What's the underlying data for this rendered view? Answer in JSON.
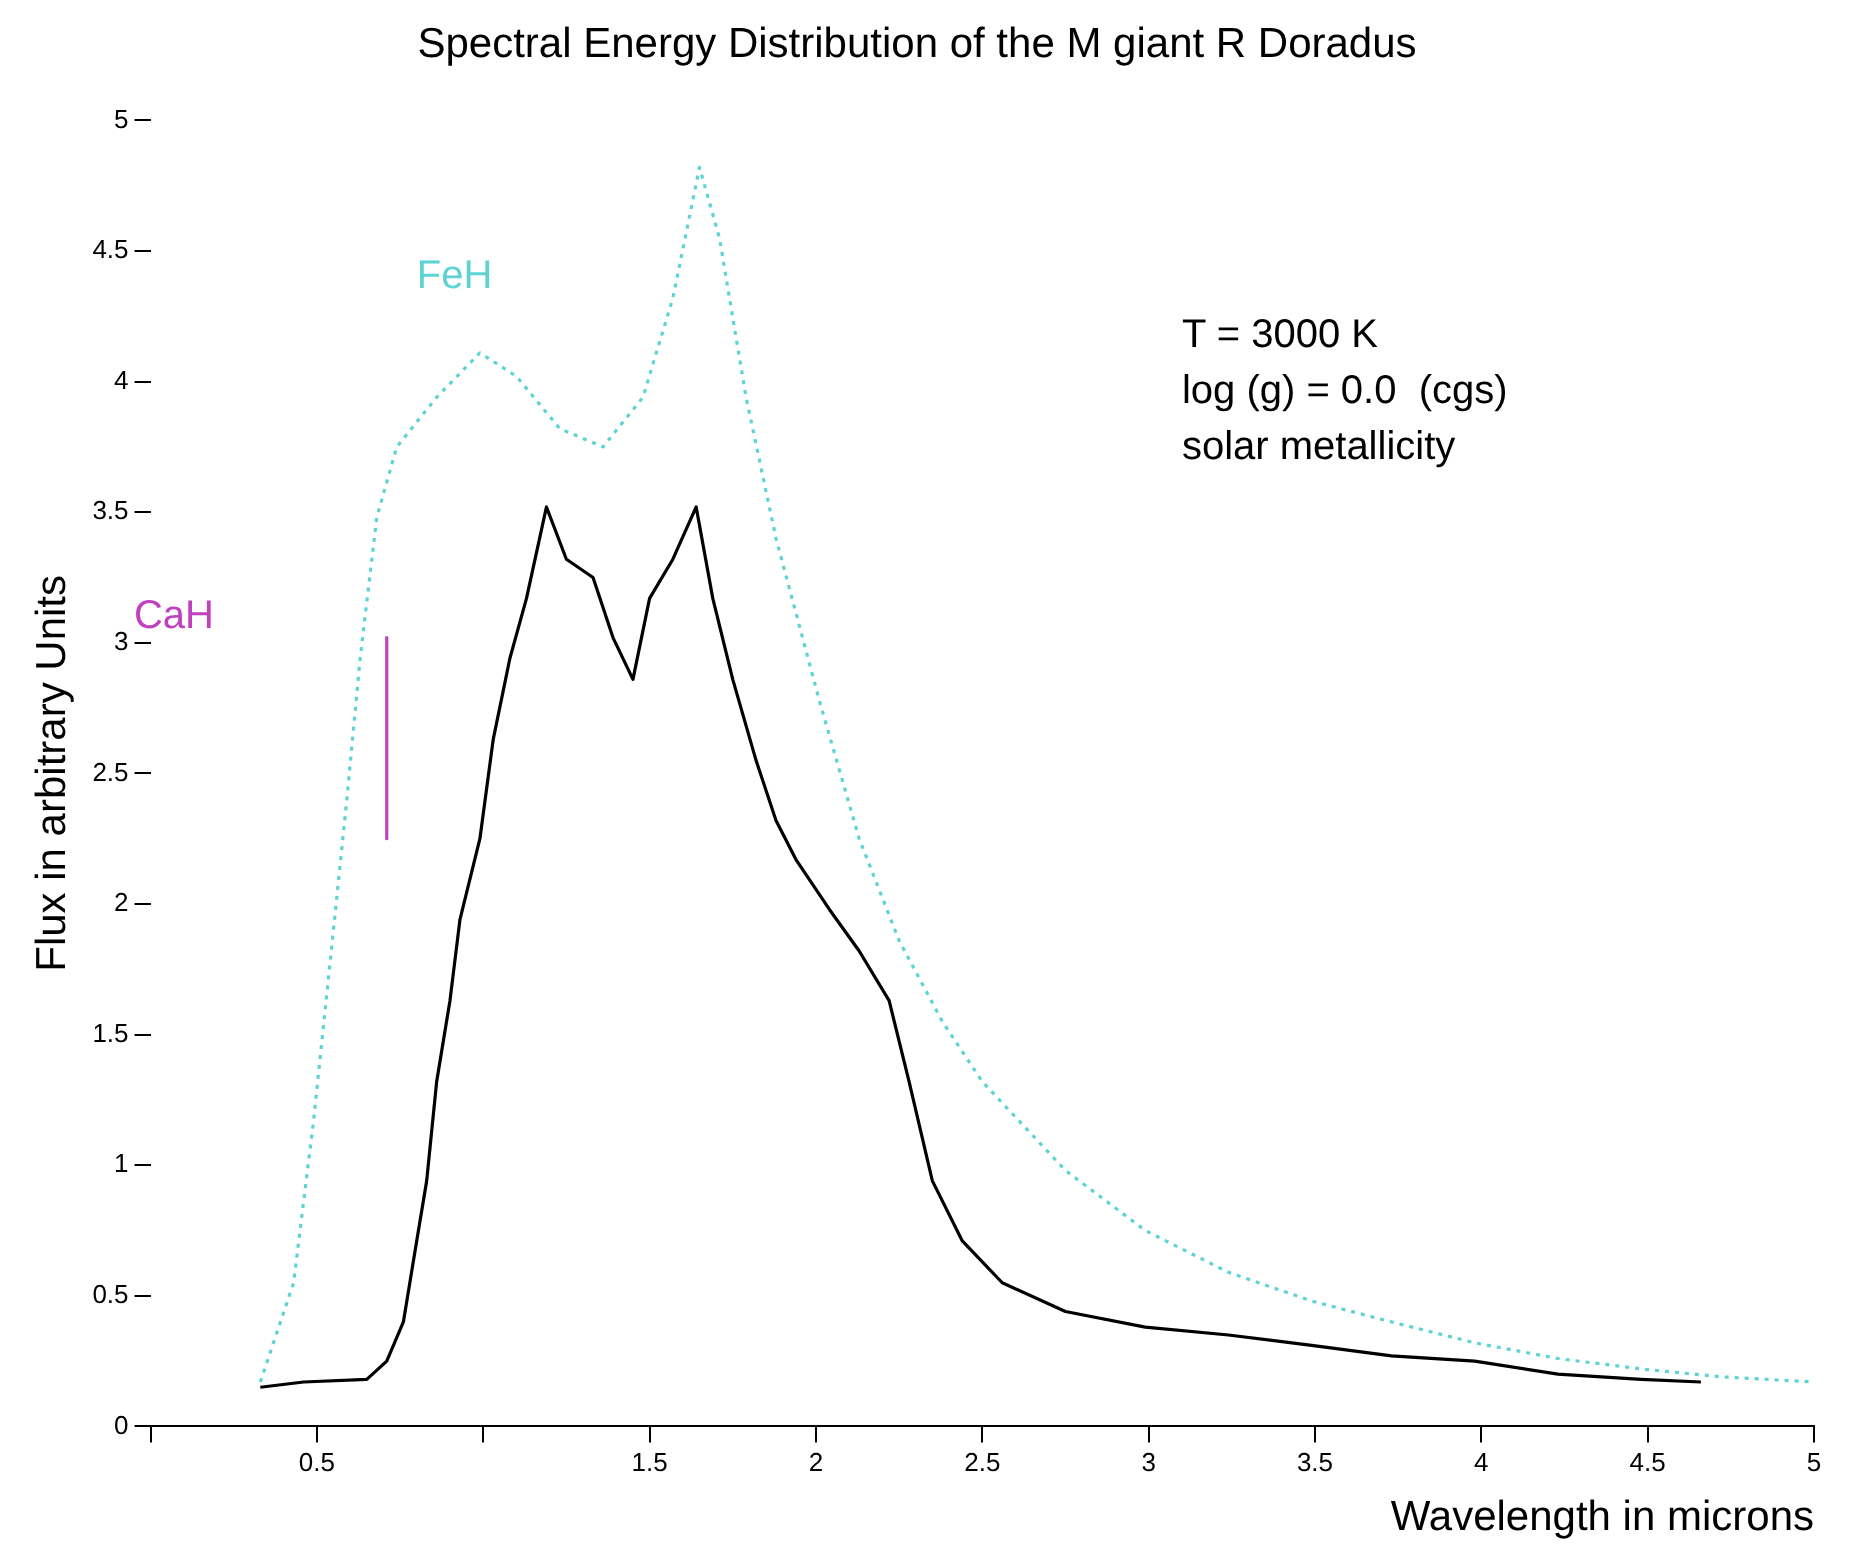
{
  "chart_data": {
    "type": "line",
    "title": "Spectral Energy Distribution of the M giant R Doradus",
    "xlabel": "Wavelength in microns",
    "ylabel": "Flux in arbitrary Units",
    "xlim": [
      0,
      5
    ],
    "xticks": [
      {
        "value": 0,
        "label": null
      },
      0.5,
      {
        "value": 1,
        "label": null
      },
      1.5,
      2,
      2.5,
      3,
      3.5,
      4,
      4.5,
      5
    ],
    "ylim": [
      0,
      5
    ],
    "yticks": [
      0,
      0.5,
      1,
      1.5,
      2,
      2.5,
      3,
      3.5,
      4,
      4.5,
      5
    ],
    "grid": false,
    "legend": false,
    "marker": "none",
    "series": [
      {
        "color": "#000000",
        "x": [
          0.33,
          0.46,
          0.65,
          0.71,
          0.76,
          0.8,
          0.83,
          0.86,
          0.9,
          0.93,
          0.99,
          1.03,
          1.08,
          1.13,
          1.19,
          1.25,
          1.33,
          1.39,
          1.45,
          1.5,
          1.57,
          1.64,
          1.69,
          1.75,
          1.82,
          1.88,
          1.94,
          2.04,
          2.13,
          2.22,
          2.28,
          2.35,
          2.44,
          2.56,
          2.75,
          2.99,
          3.24,
          3.49,
          3.73,
          3.98,
          4.23,
          4.48,
          4.66
        ],
        "values": [
          0.15,
          0.17,
          0.18,
          0.25,
          0.4,
          0.71,
          0.94,
          1.32,
          1.63,
          1.94,
          2.25,
          2.63,
          2.94,
          3.17,
          3.52,
          3.32,
          3.25,
          3.02,
          2.86,
          3.17,
          3.32,
          3.52,
          3.17,
          2.86,
          2.55,
          2.32,
          2.17,
          1.98,
          1.82,
          1.63,
          1.32,
          0.94,
          0.71,
          0.55,
          0.44,
          0.38,
          0.35,
          0.31,
          0.27,
          0.25,
          0.2,
          0.18,
          0.17
        ]
      },
      {
        "color": "#5fd3d3",
        "line_style": "dotted",
        "x": [
          0.33,
          0.43,
          0.49,
          0.54,
          0.59,
          0.63,
          0.68,
          0.74,
          0.86,
          0.99,
          1.1,
          1.23,
          1.36,
          1.48,
          1.57,
          1.65,
          1.71,
          1.79,
          1.88,
          2.01,
          2.13,
          2.25,
          2.38,
          2.5,
          2.75,
          2.99,
          3.24,
          3.49,
          3.73,
          3.98,
          4.23,
          4.48,
          4.72,
          5.0
        ],
        "values": [
          0.17,
          0.55,
          1.17,
          1.78,
          2.4,
          2.94,
          3.48,
          3.75,
          3.94,
          4.11,
          4.02,
          3.82,
          3.75,
          3.94,
          4.32,
          4.82,
          4.55,
          3.94,
          3.4,
          2.78,
          2.25,
          1.86,
          1.55,
          1.32,
          0.98,
          0.75,
          0.59,
          0.48,
          0.4,
          0.32,
          0.26,
          0.22,
          0.19,
          0.17
        ]
      },
      {
        "color": "#c040c0",
        "x": [
          0.71,
          0.71
        ],
        "values": [
          3.02,
          2.25
        ]
      }
    ],
    "annotations": [
      "FeH",
      "CaH",
      "T = 3000 K",
      "log (g) = 0.0  (cgs)",
      "solar metallicity"
    ]
  }
}
